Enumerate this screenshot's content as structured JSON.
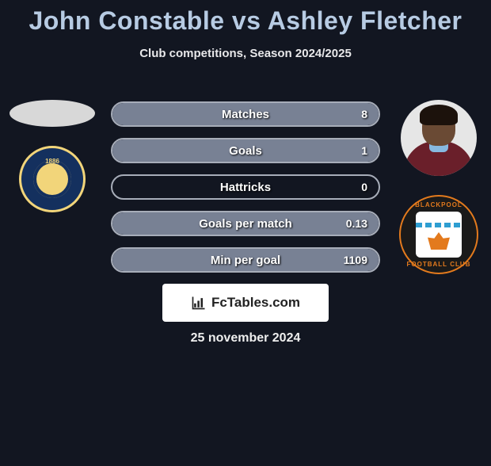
{
  "title": "John Constable vs Ashley Fletcher",
  "title_color": "#b7cbe3",
  "subtitle": "Club competitions, Season 2024/2025",
  "date": "25 november 2024",
  "watermark_text": "FcTables.com",
  "background_color": "#121621",
  "stats": [
    {
      "label": "Matches",
      "value": "8",
      "fill_pct": 100,
      "fill_color": "#788194",
      "border_color": "#a7adb9"
    },
    {
      "label": "Goals",
      "value": "1",
      "fill_pct": 100,
      "fill_color": "#788194",
      "border_color": "#a7adb9"
    },
    {
      "label": "Hattricks",
      "value": "0",
      "fill_pct": 0,
      "fill_color": "#788194",
      "border_color": "#a7adb9"
    },
    {
      "label": "Goals per match",
      "value": "0.13",
      "fill_pct": 100,
      "fill_color": "#788194",
      "border_color": "#a7adb9"
    },
    {
      "label": "Min per goal",
      "value": "1109",
      "fill_pct": 100,
      "fill_color": "#788194",
      "border_color": "#a7adb9"
    }
  ],
  "left": {
    "player_name": "John Constable",
    "has_photo": false,
    "club": "Shrewsbury Town",
    "crest_primary": "#14305e",
    "crest_accent": "#f2d57a"
  },
  "right": {
    "player_name": "Ashley Fletcher",
    "has_photo": true,
    "skin": "#6a4a34",
    "hair": "#1c120c",
    "shirt": "#6a1f2a",
    "club": "Blackpool",
    "crest_primary": "#1a1a1a",
    "crest_accent": "#e37a1d"
  },
  "typography": {
    "title_fontsize": 32,
    "subtitle_fontsize": 15,
    "stat_label_fontsize": 15,
    "stat_value_fontsize": 14,
    "date_fontsize": 16
  }
}
